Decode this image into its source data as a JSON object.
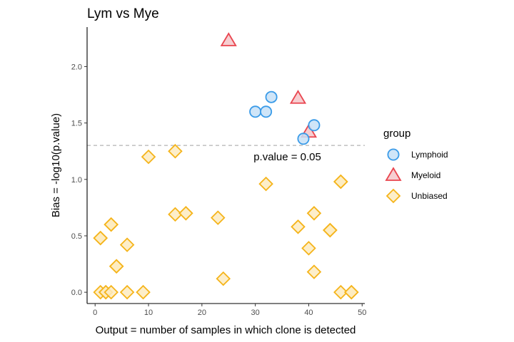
{
  "chart_data": {
    "type": "scatter",
    "title": "Lym vs Mye",
    "xlabel": "Output = number of samples in which clone is detected",
    "ylabel": "Bias = -log10(p.value)",
    "xlim": [
      -1.5,
      50.5
    ],
    "ylim": [
      -0.1,
      2.35
    ],
    "x_ticks": [
      0,
      10,
      20,
      30,
      40,
      50
    ],
    "y_ticks": [
      0.0,
      0.5,
      1.0,
      1.5,
      2.0
    ],
    "y_tick_labels": [
      "0.0",
      "0.5",
      "1.0",
      "1.5",
      "2.0"
    ],
    "grid": false,
    "legend": {
      "title": "group",
      "position": "right"
    },
    "reference_line": {
      "y": 1.30103,
      "style": "dashed",
      "color": "#b3b3b3",
      "label": "p.value = 0.05",
      "label_x": 36,
      "label_y": 1.2
    },
    "series": [
      {
        "name": "Lymphoid",
        "marker": "circle",
        "stroke": "#3a9be8",
        "fill": "#c7e1f7",
        "points": [
          [
            30,
            1.6
          ],
          [
            32,
            1.6
          ],
          [
            33,
            1.73
          ],
          [
            39,
            1.36
          ],
          [
            41,
            1.48
          ]
        ]
      },
      {
        "name": "Myeloid",
        "marker": "triangle",
        "stroke": "#e9454f",
        "fill": "#f5c6c9",
        "points": [
          [
            25,
            2.23
          ],
          [
            38,
            1.72
          ],
          [
            40,
            1.42
          ]
        ]
      },
      {
        "name": "Unbiased",
        "marker": "diamond",
        "stroke": "#f5b41a",
        "fill": "#fdebc0",
        "points": [
          [
            10,
            1.2
          ],
          [
            15,
            1.25
          ],
          [
            15,
            0.69
          ],
          [
            17,
            0.7
          ],
          [
            23,
            0.66
          ],
          [
            24,
            0.12
          ],
          [
            32,
            0.96
          ],
          [
            38,
            0.58
          ],
          [
            40,
            0.39
          ],
          [
            41,
            0.7
          ],
          [
            41,
            0.18
          ],
          [
            44,
            0.55
          ],
          [
            44,
            0.55
          ],
          [
            46,
            0.98
          ],
          [
            46,
            0.98
          ],
          [
            46,
            0.0
          ],
          [
            48,
            0.0
          ],
          [
            48,
            0.0
          ],
          [
            1,
            0.48
          ],
          [
            1,
            0.48
          ],
          [
            3,
            0.6
          ],
          [
            3,
            0.6
          ],
          [
            4,
            0.23
          ],
          [
            4,
            0.23
          ],
          [
            6,
            0.42
          ],
          [
            1,
            0.0
          ],
          [
            2,
            0.0
          ],
          [
            2,
            0.0
          ],
          [
            3,
            0.0
          ],
          [
            6,
            0.0
          ],
          [
            9,
            0.0
          ]
        ]
      }
    ]
  }
}
